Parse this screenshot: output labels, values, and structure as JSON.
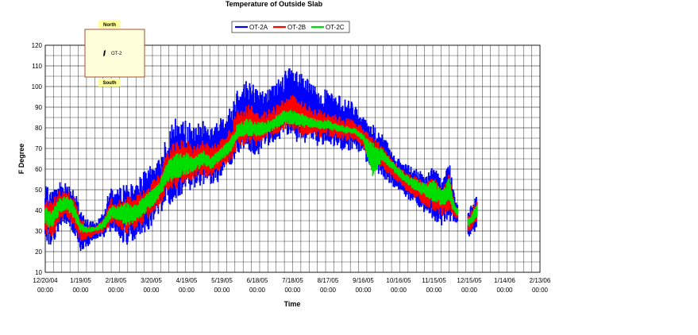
{
  "chart_data": {
    "type": "line",
    "title": "Temperature of Outside Slab",
    "xlabel": "Time",
    "ylabel": "F Degree",
    "ylim": [
      10,
      120
    ],
    "yticks": [
      10,
      20,
      30,
      40,
      50,
      60,
      70,
      80,
      90,
      100,
      110,
      120
    ],
    "xlim": [
      "12/20/04 00:00",
      "2/13/06 00:00"
    ],
    "xticks": [
      {
        "date": "2004-12-20",
        "label": [
          "12/20/04",
          "00:00"
        ]
      },
      {
        "date": "2005-01-19",
        "label": [
          "1/19/05",
          "00:00"
        ]
      },
      {
        "date": "2005-02-18",
        "label": [
          "2/18/05",
          "00:00"
        ]
      },
      {
        "date": "2005-03-20",
        "label": [
          "3/20/05",
          "00:00"
        ]
      },
      {
        "date": "2005-04-19",
        "label": [
          "4/19/05",
          "00:00"
        ]
      },
      {
        "date": "2005-05-19",
        "label": [
          "5/19/05",
          "00:00"
        ]
      },
      {
        "date": "2005-06-18",
        "label": [
          "6/18/05",
          "00:00"
        ]
      },
      {
        "date": "2005-07-18",
        "label": [
          "7/18/05",
          "00:00"
        ]
      },
      {
        "date": "2005-08-17",
        "label": [
          "8/17/05",
          "00:00"
        ]
      },
      {
        "date": "2005-09-16",
        "label": [
          "9/16/05",
          "00:00"
        ]
      },
      {
        "date": "2005-10-16",
        "label": [
          "10/16/05",
          "00:00"
        ]
      },
      {
        "date": "2005-11-15",
        "label": [
          "11/15/05",
          "00:00"
        ]
      },
      {
        "date": "2005-12-15",
        "label": [
          "12/15/05",
          "00:00"
        ]
      },
      {
        "date": "2006-01-14",
        "label": [
          "1/14/06",
          "00:00"
        ]
      },
      {
        "date": "2006-02-13",
        "label": [
          "2/13/06",
          "00:00"
        ]
      }
    ],
    "grid": true,
    "legend_position": "top-center",
    "series": [
      {
        "name": "OT-2A",
        "color": "#0000ff",
        "points": [
          {
            "x": "2004-12-20",
            "low": 25,
            "high": 52
          },
          {
            "x": "2004-12-26",
            "low": 22,
            "high": 50
          },
          {
            "x": "2005-01-01",
            "low": 30,
            "high": 55
          },
          {
            "x": "2005-01-07",
            "low": 33,
            "high": 54
          },
          {
            "x": "2005-01-13",
            "low": 28,
            "high": 52
          },
          {
            "x": "2005-01-19",
            "low": 20,
            "high": 40
          },
          {
            "x": "2005-01-25",
            "low": 22,
            "high": 36
          },
          {
            "x": "2005-02-01",
            "low": 26,
            "high": 34
          },
          {
            "x": "2005-02-08",
            "low": 27,
            "high": 42
          },
          {
            "x": "2005-02-14",
            "low": 30,
            "high": 52
          },
          {
            "x": "2005-02-20",
            "low": 28,
            "high": 50
          },
          {
            "x": "2005-02-26",
            "low": 22,
            "high": 55
          },
          {
            "x": "2005-03-05",
            "low": 25,
            "high": 52
          },
          {
            "x": "2005-03-12",
            "low": 28,
            "high": 58
          },
          {
            "x": "2005-03-20",
            "low": 32,
            "high": 62
          },
          {
            "x": "2005-03-27",
            "low": 38,
            "high": 65
          },
          {
            "x": "2005-04-03",
            "low": 42,
            "high": 80
          },
          {
            "x": "2005-04-10",
            "low": 45,
            "high": 85
          },
          {
            "x": "2005-04-19",
            "low": 48,
            "high": 84
          },
          {
            "x": "2005-04-26",
            "low": 50,
            "high": 80
          },
          {
            "x": "2005-05-03",
            "low": 52,
            "high": 85
          },
          {
            "x": "2005-05-10",
            "low": 50,
            "high": 80
          },
          {
            "x": "2005-05-19",
            "low": 55,
            "high": 86
          },
          {
            "x": "2005-05-26",
            "low": 60,
            "high": 90
          },
          {
            "x": "2005-06-02",
            "low": 65,
            "high": 102
          },
          {
            "x": "2005-06-10",
            "low": 68,
            "high": 104
          },
          {
            "x": "2005-06-18",
            "low": 66,
            "high": 100
          },
          {
            "x": "2005-06-25",
            "low": 70,
            "high": 98
          },
          {
            "x": "2005-07-03",
            "low": 72,
            "high": 102
          },
          {
            "x": "2005-07-11",
            "low": 75,
            "high": 108
          },
          {
            "x": "2005-07-18",
            "low": 74,
            "high": 110
          },
          {
            "x": "2005-07-26",
            "low": 72,
            "high": 106
          },
          {
            "x": "2005-08-03",
            "low": 73,
            "high": 102
          },
          {
            "x": "2005-08-10",
            "low": 70,
            "high": 100
          },
          {
            "x": "2005-08-17",
            "low": 72,
            "high": 98
          },
          {
            "x": "2005-08-25",
            "low": 70,
            "high": 96
          },
          {
            "x": "2005-09-02",
            "low": 68,
            "high": 94
          },
          {
            "x": "2005-09-09",
            "low": 70,
            "high": 92
          },
          {
            "x": "2005-09-16",
            "low": 66,
            "high": 86
          },
          {
            "x": "2005-09-24",
            "low": 58,
            "high": 82
          },
          {
            "x": "2005-10-02",
            "low": 55,
            "high": 78
          },
          {
            "x": "2005-10-09",
            "low": 52,
            "high": 70
          },
          {
            "x": "2005-10-16",
            "low": 50,
            "high": 65
          },
          {
            "x": "2005-10-24",
            "low": 45,
            "high": 62
          },
          {
            "x": "2005-11-01",
            "low": 42,
            "high": 60
          },
          {
            "x": "2005-11-08",
            "low": 38,
            "high": 58
          },
          {
            "x": "2005-11-15",
            "low": 35,
            "high": 62
          },
          {
            "x": "2005-11-22",
            "low": 32,
            "high": 55
          },
          {
            "x": "2005-11-28",
            "low": 35,
            "high": 65
          },
          {
            "x": "2005-12-03",
            "low": 33,
            "high": 45
          },
          {
            "x": "2005-12-15",
            "low": 25,
            "high": 40
          },
          {
            "x": "2005-12-18",
            "low": 28,
            "high": 45
          },
          {
            "x": "2005-12-22",
            "low": 32,
            "high": 50
          }
        ]
      },
      {
        "name": "OT-2B",
        "color": "#ff0000",
        "points": [
          {
            "x": "2004-12-20",
            "low": 28,
            "high": 46
          },
          {
            "x": "2004-12-26",
            "low": 27,
            "high": 45
          },
          {
            "x": "2005-01-01",
            "low": 34,
            "high": 50
          },
          {
            "x": "2005-01-07",
            "low": 37,
            "high": 50
          },
          {
            "x": "2005-01-13",
            "low": 32,
            "high": 48
          },
          {
            "x": "2005-01-19",
            "low": 25,
            "high": 36
          },
          {
            "x": "2005-01-25",
            "low": 26,
            "high": 33
          },
          {
            "x": "2005-02-01",
            "low": 28,
            "high": 32
          },
          {
            "x": "2005-02-08",
            "low": 29,
            "high": 38
          },
          {
            "x": "2005-02-14",
            "low": 33,
            "high": 46
          },
          {
            "x": "2005-02-20",
            "low": 32,
            "high": 45
          },
          {
            "x": "2005-02-26",
            "low": 28,
            "high": 48
          },
          {
            "x": "2005-03-05",
            "low": 30,
            "high": 46
          },
          {
            "x": "2005-03-12",
            "low": 33,
            "high": 50
          },
          {
            "x": "2005-03-20",
            "low": 37,
            "high": 54
          },
          {
            "x": "2005-03-27",
            "low": 42,
            "high": 58
          },
          {
            "x": "2005-04-03",
            "low": 48,
            "high": 70
          },
          {
            "x": "2005-04-10",
            "low": 50,
            "high": 74
          },
          {
            "x": "2005-04-19",
            "low": 53,
            "high": 74
          },
          {
            "x": "2005-04-26",
            "low": 55,
            "high": 71
          },
          {
            "x": "2005-05-03",
            "low": 57,
            "high": 75
          },
          {
            "x": "2005-05-10",
            "low": 55,
            "high": 71
          },
          {
            "x": "2005-05-19",
            "low": 60,
            "high": 76
          },
          {
            "x": "2005-05-26",
            "low": 64,
            "high": 80
          },
          {
            "x": "2005-06-02",
            "low": 70,
            "high": 90
          },
          {
            "x": "2005-06-10",
            "low": 72,
            "high": 92
          },
          {
            "x": "2005-06-18",
            "low": 71,
            "high": 89
          },
          {
            "x": "2005-06-25",
            "low": 74,
            "high": 88
          },
          {
            "x": "2005-07-03",
            "low": 76,
            "high": 91
          },
          {
            "x": "2005-07-11",
            "low": 79,
            "high": 95
          },
          {
            "x": "2005-07-18",
            "low": 78,
            "high": 96
          },
          {
            "x": "2005-07-26",
            "low": 76,
            "high": 93
          },
          {
            "x": "2005-08-03",
            "low": 77,
            "high": 90
          },
          {
            "x": "2005-08-10",
            "low": 75,
            "high": 89
          },
          {
            "x": "2005-08-17",
            "low": 76,
            "high": 88
          },
          {
            "x": "2005-08-25",
            "low": 74,
            "high": 86
          },
          {
            "x": "2005-09-02",
            "low": 73,
            "high": 85
          },
          {
            "x": "2005-09-09",
            "low": 74,
            "high": 84
          },
          {
            "x": "2005-09-16",
            "low": 70,
            "high": 80
          },
          {
            "x": "2005-09-24",
            "low": 63,
            "high": 76
          },
          {
            "x": "2005-10-02",
            "low": 60,
            "high": 72
          },
          {
            "x": "2005-10-09",
            "low": 56,
            "high": 66
          },
          {
            "x": "2005-10-16",
            "low": 53,
            "high": 62
          },
          {
            "x": "2005-10-24",
            "low": 48,
            "high": 58
          },
          {
            "x": "2005-11-01",
            "low": 45,
            "high": 56
          },
          {
            "x": "2005-11-08",
            "low": 42,
            "high": 54
          },
          {
            "x": "2005-11-15",
            "low": 40,
            "high": 57
          },
          {
            "x": "2005-11-22",
            "low": 37,
            "high": 51
          },
          {
            "x": "2005-11-28",
            "low": 39,
            "high": 58
          },
          {
            "x": "2005-12-03",
            "low": 36,
            "high": 42
          },
          {
            "x": "2005-12-15",
            "low": 29,
            "high": 37
          },
          {
            "x": "2005-12-18",
            "low": 31,
            "high": 42
          },
          {
            "x": "2005-12-22",
            "low": 35,
            "high": 46
          }
        ]
      },
      {
        "name": "OT-2C",
        "color": "#00dd00",
        "points": [
          {
            "x": "2004-12-20",
            "low": 32,
            "high": 42
          },
          {
            "x": "2004-12-26",
            "low": 31,
            "high": 41
          },
          {
            "x": "2005-01-01",
            "low": 38,
            "high": 46
          },
          {
            "x": "2005-01-07",
            "low": 40,
            "high": 47
          },
          {
            "x": "2005-01-13",
            "low": 36,
            "high": 45
          },
          {
            "x": "2005-01-19",
            "low": 29,
            "high": 34
          },
          {
            "x": "2005-01-25",
            "low": 29,
            "high": 32
          },
          {
            "x": "2005-02-01",
            "low": 30,
            "high": 32
          },
          {
            "x": "2005-02-08",
            "low": 31,
            "high": 36
          },
          {
            "x": "2005-02-14",
            "low": 36,
            "high": 43
          },
          {
            "x": "2005-02-20",
            "low": 35,
            "high": 42
          },
          {
            "x": "2005-02-26",
            "low": 32,
            "high": 44
          },
          {
            "x": "2005-03-05",
            "low": 34,
            "high": 43
          },
          {
            "x": "2005-03-12",
            "low": 37,
            "high": 46
          },
          {
            "x": "2005-03-20",
            "low": 41,
            "high": 50
          },
          {
            "x": "2005-03-27",
            "low": 46,
            "high": 54
          },
          {
            "x": "2005-04-03",
            "low": 53,
            "high": 64
          },
          {
            "x": "2005-04-10",
            "low": 55,
            "high": 68
          },
          {
            "x": "2005-04-19",
            "low": 57,
            "high": 68
          },
          {
            "x": "2005-04-26",
            "low": 59,
            "high": 66
          },
          {
            "x": "2005-05-03",
            "low": 61,
            "high": 70
          },
          {
            "x": "2005-05-10",
            "low": 60,
            "high": 66
          },
          {
            "x": "2005-05-19",
            "low": 64,
            "high": 71
          },
          {
            "x": "2005-05-26",
            "low": 68,
            "high": 75
          },
          {
            "x": "2005-06-02",
            "low": 74,
            "high": 83
          },
          {
            "x": "2005-06-10",
            "low": 76,
            "high": 85
          },
          {
            "x": "2005-06-18",
            "low": 75,
            "high": 83
          },
          {
            "x": "2005-06-25",
            "low": 77,
            "high": 83
          },
          {
            "x": "2005-07-03",
            "low": 79,
            "high": 86
          },
          {
            "x": "2005-07-11",
            "low": 82,
            "high": 89
          },
          {
            "x": "2005-07-18",
            "low": 81,
            "high": 89
          },
          {
            "x": "2005-07-26",
            "low": 80,
            "high": 87
          },
          {
            "x": "2005-08-03",
            "low": 80,
            "high": 85
          },
          {
            "x": "2005-08-10",
            "low": 79,
            "high": 84
          },
          {
            "x": "2005-08-17",
            "low": 79,
            "high": 84
          },
          {
            "x": "2005-08-25",
            "low": 78,
            "high": 82
          },
          {
            "x": "2005-09-02",
            "low": 77,
            "high": 81
          },
          {
            "x": "2005-09-09",
            "low": 77,
            "high": 80
          },
          {
            "x": "2005-09-16",
            "low": 73,
            "high": 77
          },
          {
            "x": "2005-09-24",
            "low": 56,
            "high": 73
          },
          {
            "x": "2005-10-02",
            "low": 64,
            "high": 70
          },
          {
            "x": "2005-10-09",
            "low": 60,
            "high": 65
          },
          {
            "x": "2005-10-16",
            "low": 56,
            "high": 61
          },
          {
            "x": "2005-10-24",
            "low": 52,
            "high": 57
          },
          {
            "x": "2005-11-01",
            "low": 49,
            "high": 55
          },
          {
            "x": "2005-11-08",
            "low": 46,
            "high": 53
          },
          {
            "x": "2005-11-15",
            "low": 44,
            "high": 55
          },
          {
            "x": "2005-11-22",
            "low": 42,
            "high": 50
          },
          {
            "x": "2005-11-28",
            "low": 43,
            "high": 56
          },
          {
            "x": "2005-12-03",
            "low": 38,
            "high": 42
          },
          {
            "x": "2005-12-15",
            "low": 32,
            "high": 36
          },
          {
            "x": "2005-12-18",
            "low": 34,
            "high": 40
          },
          {
            "x": "2005-12-22",
            "low": 37,
            "high": 44
          }
        ]
      }
    ]
  },
  "inset": {
    "north_label": "North",
    "south_label": "South",
    "sensor_label": "OT-2",
    "colors": {
      "fill": "#ffffdc",
      "border": "#a0522d",
      "label_bg": "#ffffa0"
    }
  }
}
